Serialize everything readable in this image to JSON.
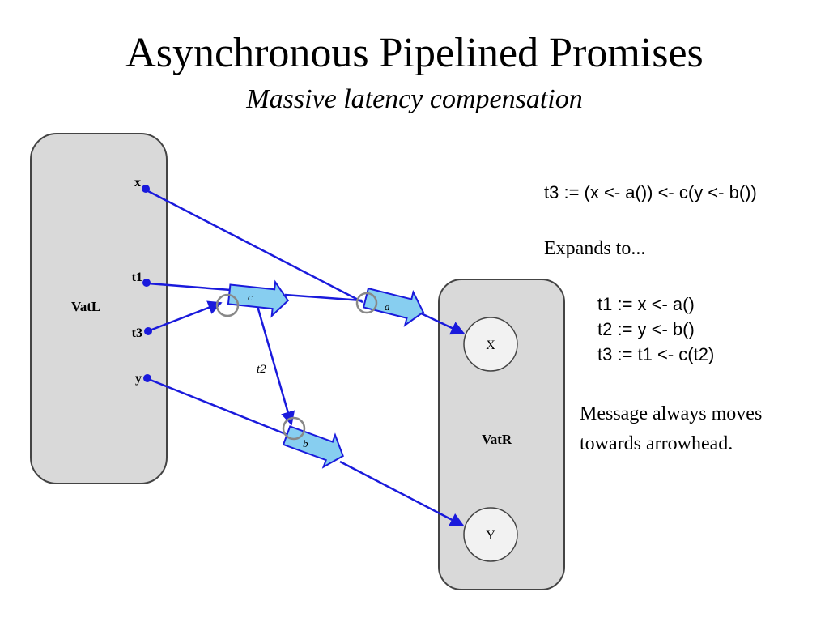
{
  "title": "Asynchronous Pipelined Promises",
  "subtitle": "Massive latency compensation",
  "diagram": {
    "vat_left": "VatL",
    "vat_right": "VatR",
    "ports": {
      "x": "x",
      "t1": "t1",
      "t3": "t3",
      "y": "y"
    },
    "objects": {
      "X": "X",
      "Y": "Y"
    },
    "messages": {
      "a": "a",
      "b": "b",
      "c": "c"
    },
    "t2": "t2",
    "colors": {
      "link": "#1a1adc",
      "message": "#87cef0",
      "vat": "#d9d9d9",
      "object": "#f2f2f2"
    }
  },
  "notes": {
    "expression": "t3 := (x <- a()) <- c(y <- b())",
    "expands": "Expands to...",
    "steps": [
      "t1 := x <- a()",
      "t2 := y <- b()",
      "t3 := t1 <- c(t2)"
    ],
    "remark": [
      "Message always moves",
      "towards arrowhead."
    ]
  }
}
